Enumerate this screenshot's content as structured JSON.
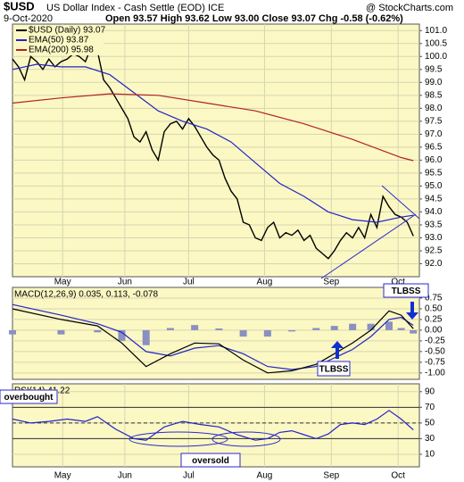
{
  "header": {
    "symbol": "$USD",
    "name": "US Dollar Index - Cash Settle (EOD) ICE",
    "source": "@ StockCharts.com",
    "date": "9-Oct-2020",
    "quote": "Open 93.57 High 93.62 Low 93.00 Close 93.07 Chg -0.58 (-0.62%)"
  },
  "chart_data": [
    {
      "type": "line",
      "xlim": [
        0,
        134
      ],
      "ylim": [
        91.5,
        101.25
      ],
      "grid": true,
      "xticks": [
        {
          "value": 16.5,
          "label": "May"
        },
        {
          "value": 37,
          "label": "Jun"
        },
        {
          "value": 58,
          "label": "Jul"
        },
        {
          "value": 83,
          "label": "Aug"
        },
        {
          "value": 105,
          "label": "Sep"
        },
        {
          "value": 127,
          "label": "Oct"
        }
      ],
      "yticks": [
        {
          "value": 92,
          "label": "92.0"
        },
        {
          "value": 92.5,
          "label": "92.5"
        },
        {
          "value": 93,
          "label": "93.0"
        },
        {
          "value": 93.5,
          "label": "93.5"
        },
        {
          "value": 94,
          "label": "94.0"
        },
        {
          "value": 94.5,
          "label": "94.5"
        },
        {
          "value": 95,
          "label": "95.0"
        },
        {
          "value": 95.5,
          "label": "95.5"
        },
        {
          "value": 96,
          "label": "96.0"
        },
        {
          "value": 96.5,
          "label": "96.5"
        },
        {
          "value": 97,
          "label": "97.0"
        },
        {
          "value": 97.5,
          "label": "97.5"
        },
        {
          "value": 98,
          "label": "98.0"
        },
        {
          "value": 98.5,
          "label": "98.5"
        },
        {
          "value": 99,
          "label": "99.0"
        },
        {
          "value": 99.5,
          "label": "99.5"
        },
        {
          "value": 100,
          "label": "100.0"
        },
        {
          "value": 100.5,
          "label": "100.5"
        },
        {
          "value": 101,
          "label": "101.0"
        }
      ],
      "series": [
        {
          "name": "$USD (Daily) 93.07",
          "color": "#000000",
          "x": [
            0,
            2,
            4,
            6,
            8,
            10,
            12,
            14,
            16,
            18,
            20,
            22,
            24,
            26,
            28,
            30,
            32,
            34,
            36,
            38,
            40,
            42,
            44,
            46,
            48,
            50,
            52,
            54,
            56,
            58,
            60,
            62,
            64,
            66,
            68,
            70,
            72,
            74,
            76,
            78,
            80,
            82,
            84,
            86,
            88,
            90,
            92,
            94,
            96,
            98,
            100,
            102,
            104,
            106,
            108,
            110,
            112,
            114,
            116,
            118,
            120,
            122,
            124,
            126,
            128,
            130,
            132
          ],
          "values": [
            99.9,
            99.6,
            99.1,
            100.0,
            99.8,
            99.5,
            99.9,
            99.6,
            99.8,
            99.9,
            100.1,
            100.0,
            99.8,
            100.4,
            100.2,
            99.1,
            98.8,
            98.4,
            98.0,
            97.6,
            96.9,
            96.7,
            97.1,
            96.4,
            96.0,
            97.1,
            97.4,
            97.5,
            97.2,
            97.6,
            97.3,
            96.9,
            96.5,
            96.2,
            96.0,
            95.3,
            94.8,
            94.5,
            93.6,
            93.5,
            93.0,
            92.9,
            93.4,
            93.6,
            93.0,
            93.2,
            93.1,
            93.3,
            92.9,
            93.1,
            92.6,
            92.4,
            92.2,
            92.5,
            92.9,
            93.2,
            93.0,
            93.4,
            93.0,
            93.9,
            93.4,
            94.6,
            94.2,
            93.9,
            93.8,
            93.6,
            93.07
          ]
        },
        {
          "name": "EMA(50) 93.87",
          "color": "#2323c8",
          "x": [
            0,
            8,
            16,
            24,
            32,
            40,
            48,
            56,
            64,
            72,
            80,
            88,
            96,
            104,
            112,
            120,
            128,
            132
          ],
          "values": [
            99.5,
            99.7,
            99.6,
            99.6,
            99.3,
            98.6,
            97.9,
            97.5,
            97.2,
            96.7,
            95.9,
            95.1,
            94.6,
            94.0,
            93.7,
            93.6,
            93.8,
            93.87
          ]
        },
        {
          "name": "EMA(200) 95.98",
          "color": "#b22222",
          "x": [
            0,
            16,
            32,
            48,
            64,
            80,
            96,
            112,
            128,
            132
          ],
          "values": [
            98.2,
            98.4,
            98.56,
            98.5,
            98.2,
            97.9,
            97.4,
            96.8,
            96.1,
            95.98
          ]
        }
      ]
    },
    {
      "type": "line",
      "title": "MACD(12,26,9) 0.035, 0.113, -0.078",
      "xlim": [
        0,
        134
      ],
      "ylim": [
        -1.15,
        1.0
      ],
      "grid": true,
      "yticks": [
        {
          "value": 0.75,
          "label": "0.75"
        },
        {
          "value": 0.5,
          "label": "0.50"
        },
        {
          "value": 0.25,
          "label": "0.25"
        },
        {
          "value": 0,
          "label": "0.00"
        },
        {
          "value": -0.25,
          "label": "-0.25"
        },
        {
          "value": -0.5,
          "label": "-0.50"
        },
        {
          "value": -0.75,
          "label": "-0.75"
        },
        {
          "value": -1,
          "label": "-1.00"
        }
      ],
      "series": [
        {
          "style": "bar",
          "color": "#8a90c0",
          "x": [
            0,
            16,
            28,
            36,
            44,
            52,
            60,
            68,
            76,
            84,
            92,
            100,
            106,
            112,
            118,
            124,
            128,
            132
          ],
          "values": [
            -0.1,
            -0.1,
            -0.05,
            -0.25,
            -0.35,
            0.05,
            0.12,
            0.04,
            -0.15,
            -0.15,
            -0.03,
            0.05,
            0.1,
            0.15,
            0.15,
            0.2,
            0.05,
            -0.078
          ]
        },
        {
          "color": "#2323c8",
          "x": [
            0,
            16,
            28,
            36,
            44,
            52,
            60,
            68,
            76,
            84,
            92,
            100,
            106,
            112,
            118,
            124,
            128,
            132
          ],
          "values": [
            0.6,
            0.35,
            0.15,
            -0.05,
            -0.5,
            -0.6,
            -0.42,
            -0.36,
            -0.55,
            -0.85,
            -0.92,
            -0.85,
            -0.65,
            -0.45,
            -0.15,
            0.25,
            0.3,
            0.113
          ]
        },
        {
          "color": "#000000",
          "x": [
            0,
            16,
            28,
            36,
            44,
            52,
            60,
            68,
            76,
            84,
            92,
            100,
            106,
            112,
            118,
            124,
            128,
            132
          ],
          "values": [
            0.5,
            0.25,
            0.1,
            -0.3,
            -0.85,
            -0.55,
            -0.3,
            -0.32,
            -0.7,
            -1.0,
            -0.95,
            -0.8,
            -0.55,
            -0.3,
            0.0,
            0.45,
            0.35,
            0.035
          ]
        }
      ],
      "annotations": [
        "TLBSS",
        "TLBSS"
      ]
    },
    {
      "type": "line",
      "title": "RSI(14) 41.22",
      "xlim": [
        0,
        134
      ],
      "ylim": [
        -6,
        100
      ],
      "grid": true,
      "xticks": [
        {
          "value": 16.5,
          "label": "May"
        },
        {
          "value": 37,
          "label": "Jun"
        },
        {
          "value": 58,
          "label": "Jul"
        },
        {
          "value": 83,
          "label": "Aug"
        },
        {
          "value": 105,
          "label": "Sep"
        },
        {
          "value": 127,
          "label": "Oct"
        }
      ],
      "yticks": [
        90,
        70,
        50,
        30,
        10
      ],
      "reference_lines": [
        70,
        50,
        30
      ],
      "series": [
        {
          "color": "#2323c8",
          "x": [
            0,
            6,
            12,
            18,
            24,
            28,
            34,
            40,
            44,
            50,
            56,
            62,
            68,
            74,
            80,
            84,
            88,
            92,
            96,
            100,
            104,
            108,
            112,
            116,
            120,
            124,
            128,
            132
          ],
          "values": [
            55,
            50,
            52,
            55,
            52,
            58,
            42,
            30,
            28,
            45,
            52,
            48,
            45,
            35,
            28,
            30,
            38,
            40,
            35,
            30,
            36,
            48,
            50,
            48,
            55,
            66,
            55,
            41.22
          ]
        }
      ],
      "annotations": [
        "overbought",
        "oversold"
      ]
    }
  ]
}
